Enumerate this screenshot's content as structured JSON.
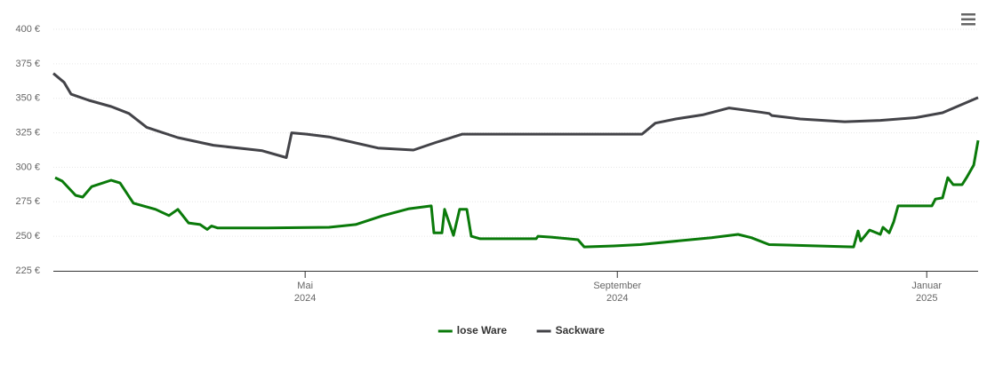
{
  "chart_data": {
    "type": "line",
    "xlim": [
      2024.06,
      2025.0553
    ],
    "xticks": [
      {
        "value": 2024.331,
        "label": [
          "Mai",
          "2024"
        ]
      },
      {
        "value": 2024.667,
        "label": [
          "September",
          "2024"
        ]
      },
      {
        "value": 2025.0,
        "label": [
          "Januar",
          "2025"
        ]
      }
    ],
    "ylim": [
      225,
      400
    ],
    "yticks": [
      {
        "value": 225,
        "label": "225 €"
      },
      {
        "value": 250,
        "label": "250 €"
      },
      {
        "value": 275,
        "label": "275 €"
      },
      {
        "value": 300,
        "label": "300 €"
      },
      {
        "value": 325,
        "label": "325 €"
      },
      {
        "value": 350,
        "label": "350 €"
      },
      {
        "value": 375,
        "label": "375 €"
      },
      {
        "value": 400,
        "label": "400 €"
      }
    ],
    "grid": true,
    "legend": "bottom",
    "series": [
      {
        "name": "lose Ware",
        "color": "#0a7a0a",
        "x": [
          2024.0619,
          2024.0696,
          2024.0839,
          2024.0916,
          2024.1012,
          2024.1222,
          2024.1318,
          2024.1461,
          2024.1701,
          2024.1844,
          2024.194,
          2024.2055,
          2024.2179,
          2024.2256,
          2024.2303,
          2024.237,
          2024.2897,
          2024.3567,
          2024.3854,
          2024.4141,
          2024.4428,
          2024.4667,
          2024.4696,
          2024.4782,
          2024.4811,
          2024.4907,
          2024.4973,
          2024.505,
          2024.5098,
          2024.5194,
          2024.5797,
          2024.5816,
          2024.5959,
          2024.6246,
          2024.6313,
          2024.6629,
          2024.6916,
          2024.7682,
          2024.7969,
          2024.8112,
          2024.8304,
          2024.9213,
          2024.9261,
          2024.929,
          2024.9385,
          2024.95,
          2024.9529,
          2024.9596,
          2024.9644,
          2024.9692,
          2025.0055,
          2025.0094,
          2025.017,
          2025.0227,
          2025.0285,
          2025.0381,
          2025.0429,
          2025.0506,
          2025.0553
        ],
        "values": [
          292.5,
          290,
          279.7,
          278.4,
          286,
          290.6,
          288.6,
          274,
          269.5,
          265,
          269.5,
          259.7,
          258.5,
          255,
          257.5,
          256,
          256,
          256.5,
          258.5,
          264.8,
          270,
          272,
          252.5,
          252.5,
          269.5,
          250.7,
          269.5,
          269.5,
          250,
          248.2,
          248.2,
          250,
          249.4,
          247.5,
          242.3,
          243,
          244,
          249,
          251.4,
          249,
          244,
          242.3,
          253.8,
          246.6,
          254.5,
          251.4,
          256.5,
          252.5,
          260.3,
          272,
          272,
          277,
          277.8,
          292.5,
          287.4,
          287.4,
          292.5,
          301.6,
          319.5
        ]
      },
      {
        "name": "Sackware",
        "color": "#434348",
        "x": [
          2024.06,
          2024.0715,
          2024.0791,
          2024.0983,
          2024.1222,
          2024.1413,
          2024.1605,
          2024.194,
          2024.2323,
          2024.2849,
          2024.3107,
          2024.3165,
          2024.3327,
          2024.3567,
          2024.4093,
          2024.4476,
          2024.4715,
          2024.5002,
          2024.5385,
          2024.6935,
          2024.7079,
          2024.7299,
          2024.7586,
          2024.7873,
          2024.8208,
          2024.8304,
          2024.8333,
          2024.8639,
          2024.9117,
          2024.95,
          2024.9883,
          2025.017,
          2025.0553
        ],
        "values": [
          368,
          361.6,
          353,
          348.5,
          344,
          339,
          329,
          321.5,
          316,
          312,
          307,
          325,
          324,
          322,
          314,
          312.5,
          318,
          324,
          324,
          324,
          332,
          335,
          338,
          343,
          340,
          339,
          337.5,
          335,
          333,
          334,
          336,
          339.5,
          350.5
        ]
      }
    ]
  }
}
